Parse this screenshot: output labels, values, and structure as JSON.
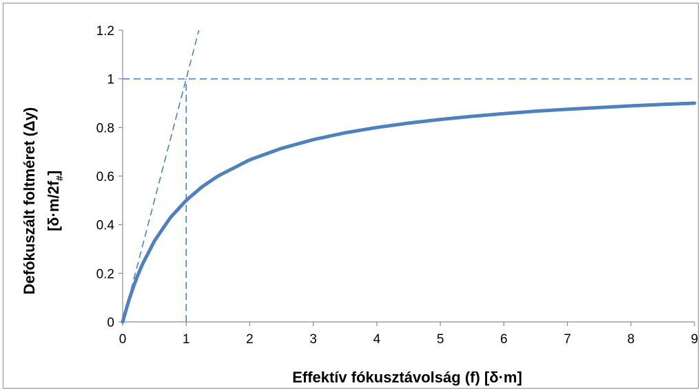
{
  "chart_data": {
    "type": "line",
    "title": "",
    "xlabel": "Effektív fókusztávolság (f)  [δ·m]",
    "ylabel_line1": "Defókuszált foltméret (Δy)",
    "ylabel_line2_main": "[δ·m/2f",
    "ylabel_line2_sub": "#",
    "ylabel_line2_end": "]",
    "xlim": [
      0,
      9
    ],
    "ylim": [
      0,
      1.2
    ],
    "xticks": [
      0,
      1,
      2,
      3,
      4,
      5,
      6,
      7,
      8,
      9
    ],
    "yticks": [
      0,
      0.2,
      0.4,
      0.6,
      0.8,
      1,
      1.2
    ],
    "ytick_labels": [
      "0",
      "0.2",
      "0.4",
      "0.6",
      "0.8",
      "1",
      "1.2"
    ],
    "grid": false,
    "legend": "none",
    "series": [
      {
        "style": "solid-thick",
        "color": "#4f81bd",
        "x": [
          0,
          0.1,
          0.2,
          0.3,
          0.5,
          0.75,
          1,
          1.25,
          1.5,
          2,
          2.5,
          3,
          3.5,
          4,
          4.5,
          5,
          5.5,
          6,
          6.5,
          7,
          7.5,
          8,
          8.5,
          9
        ],
        "y": [
          0,
          0.091,
          0.167,
          0.231,
          0.333,
          0.429,
          0.5,
          0.556,
          0.6,
          0.667,
          0.714,
          0.75,
          0.778,
          0.8,
          0.818,
          0.833,
          0.846,
          0.857,
          0.867,
          0.875,
          0.882,
          0.889,
          0.895,
          0.9
        ]
      },
      {
        "style": "dashed-thin",
        "color": "#4f81bd",
        "x": [
          0,
          1.2
        ],
        "y": [
          0,
          1.2
        ]
      },
      {
        "style": "dashed-thin",
        "color": "#4f81bd",
        "x": [
          0,
          9
        ],
        "y": [
          1,
          1
        ]
      },
      {
        "style": "dashed-thin",
        "color": "#4f81bd",
        "x": [
          1,
          1
        ],
        "y": [
          0,
          1
        ]
      }
    ]
  }
}
